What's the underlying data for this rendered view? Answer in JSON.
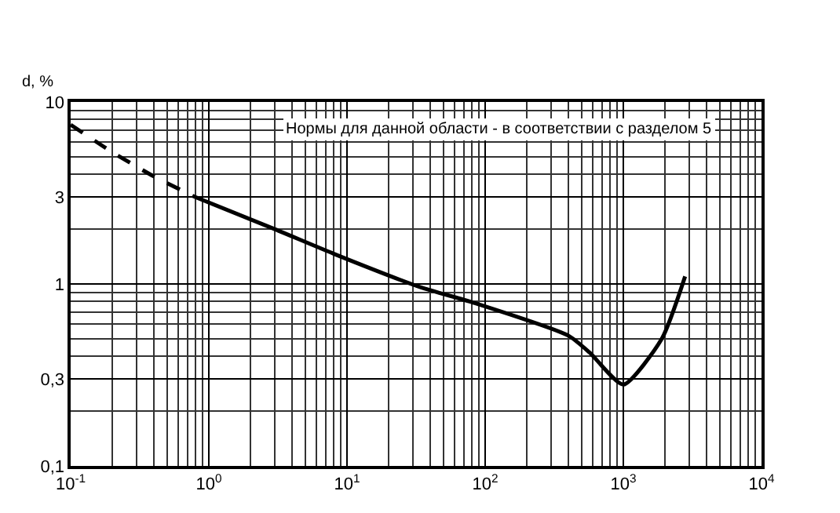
{
  "chart_data": {
    "type": "line",
    "ylabel": "d, %",
    "log": "xy",
    "grid": true,
    "marker": "none",
    "xlim": [
      0.1,
      10000
    ],
    "ylim": [
      0.1,
      10
    ],
    "xticks": [
      {
        "value": 0.1,
        "label": "10$^{-1}$"
      },
      {
        "value": 1,
        "label": "10$^{0}$"
      },
      {
        "value": 10,
        "label": "10$^{1}$"
      },
      {
        "value": 100,
        "label": "10$^{2}$"
      },
      {
        "value": 1000,
        "label": "10$^{3}$"
      },
      {
        "value": 10000,
        "label": "10$^{4}$"
      }
    ],
    "yticks": [
      {
        "value": 0.1,
        "label": "0,1"
      },
      {
        "value": 0.3,
        "label": "0,3"
      },
      1,
      3,
      {
        "value": 10,
        "label": "10"
      }
    ],
    "annotations": [
      "Нормы для данной области - в соответствии с разделом 5"
    ],
    "series": [
      {
        "color": "#000000",
        "line_style": "dashed",
        "x": [
          0.1,
          0.2,
          0.4,
          0.8
        ],
        "values": [
          7.5,
          5.3,
          3.9,
          3.0
        ]
      },
      {
        "color": "#000000",
        "line_style": "solid",
        "x": [
          0.8,
          3,
          8.3,
          34,
          82,
          400,
          570,
          1000,
          1900,
          2800
        ],
        "values": [
          3.0,
          2.0,
          1.45,
          0.96,
          0.79,
          0.52,
          0.42,
          0.28,
          0.5,
          1.1
        ]
      }
    ]
  }
}
